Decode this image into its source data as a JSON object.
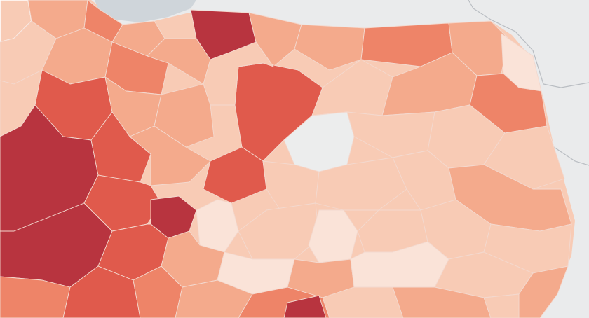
{
  "map": {
    "type": "choropleth",
    "colors": {
      "background": "#eaebec",
      "sea": "#cfd5da",
      "blank_region": "#eceded",
      "scale": [
        "#fae3d8",
        "#f8cbb5",
        "#f4aa8c",
        "#ee8468",
        "#e05a4c",
        "#b8343f"
      ]
    },
    "legend_visible": false,
    "labels_visible": false
  }
}
